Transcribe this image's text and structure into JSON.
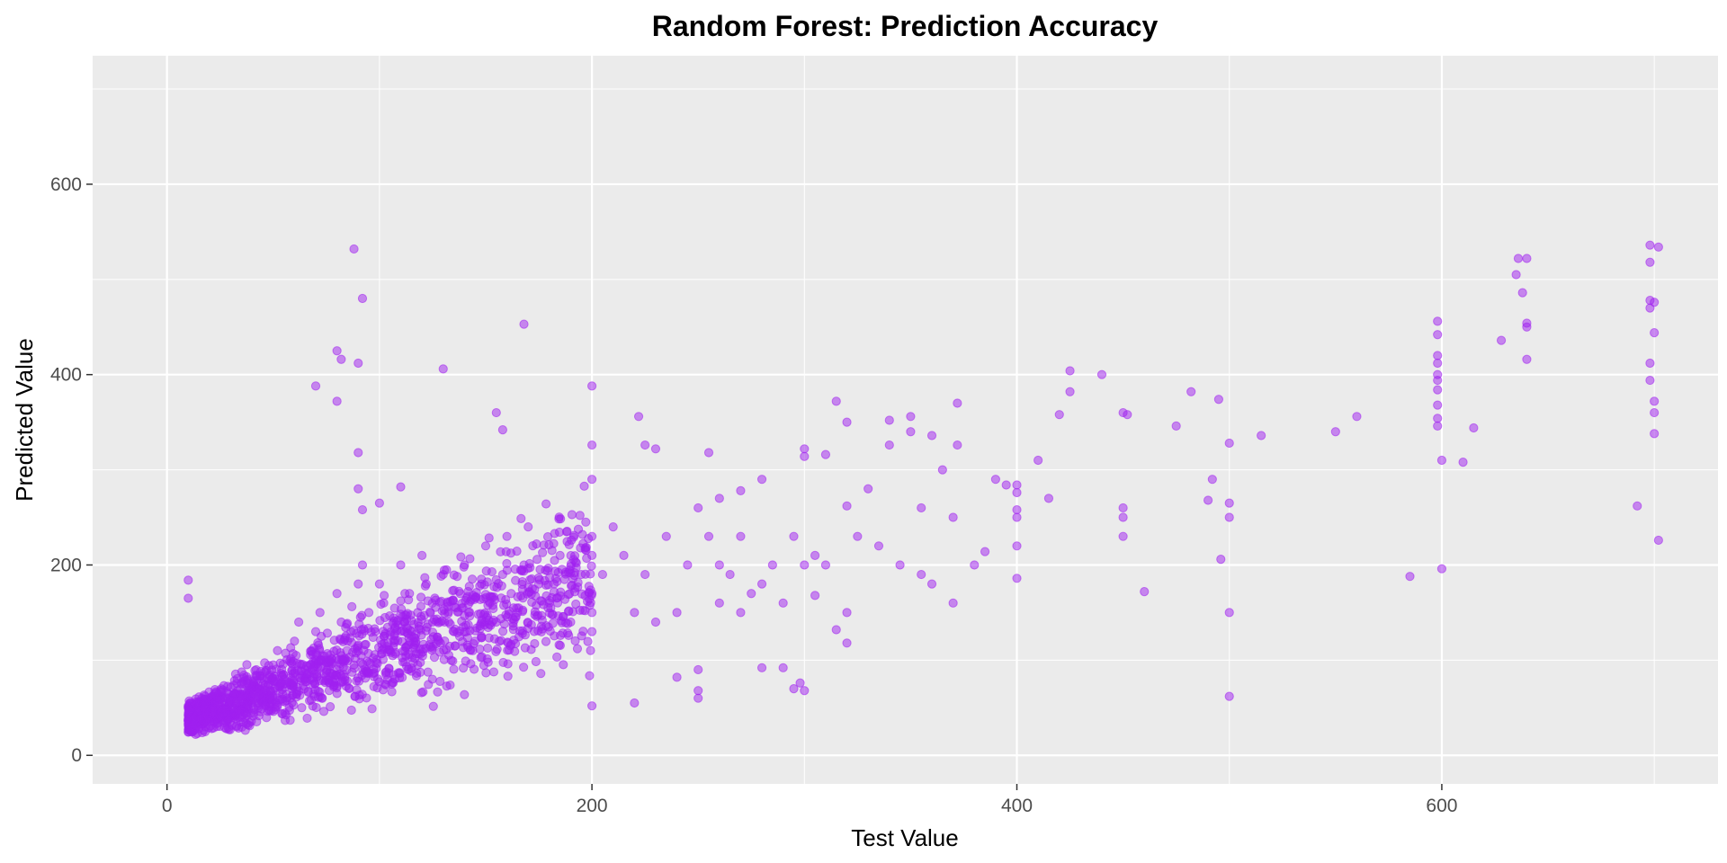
{
  "chart_data": {
    "type": "scatter",
    "title": "Random Forest: Prediction Accuracy",
    "xlabel": "Test Value",
    "ylabel": "Predicted Value",
    "xlim": [
      -35,
      730
    ],
    "ylim": [
      -30,
      735
    ],
    "x_ticks": [
      0,
      200,
      400,
      600
    ],
    "y_ticks": [
      0,
      200,
      400,
      600
    ],
    "x_tick_labels": [
      "0",
      "200",
      "400",
      "600"
    ],
    "y_tick_labels": [
      "0",
      "200",
      "400",
      "600"
    ],
    "grid": true,
    "legend": "none",
    "colors": {
      "point": "#A020F0",
      "panel": "#EBEBEB",
      "grid": "#FFFFFF"
    },
    "points": [
      [
        10,
        184
      ],
      [
        10,
        165
      ],
      [
        10,
        52
      ],
      [
        12,
        25
      ],
      [
        14,
        38
      ],
      [
        15,
        45
      ],
      [
        18,
        30
      ],
      [
        20,
        60
      ],
      [
        22,
        55
      ],
      [
        25,
        42
      ],
      [
        28,
        28
      ],
      [
        30,
        50
      ],
      [
        32,
        65
      ],
      [
        35,
        40
      ],
      [
        38,
        80
      ],
      [
        40,
        55
      ],
      [
        42,
        90
      ],
      [
        45,
        70
      ],
      [
        48,
        48
      ],
      [
        50,
        95
      ],
      [
        52,
        110
      ],
      [
        55,
        75
      ],
      [
        58,
        60
      ],
      [
        60,
        120
      ],
      [
        62,
        140
      ],
      [
        65,
        90
      ],
      [
        68,
        110
      ],
      [
        70,
        130
      ],
      [
        72,
        150
      ],
      [
        75,
        100
      ],
      [
        78,
        85
      ],
      [
        80,
        170
      ],
      [
        82,
        140
      ],
      [
        85,
        120
      ],
      [
        88,
        95
      ],
      [
        90,
        180
      ],
      [
        92,
        200
      ],
      [
        95,
        150
      ],
      [
        98,
        130
      ],
      [
        100,
        180
      ],
      [
        102,
        160
      ],
      [
        105,
        110
      ],
      [
        108,
        140
      ],
      [
        110,
        200
      ],
      [
        112,
        170
      ],
      [
        115,
        130
      ],
      [
        118,
        150
      ],
      [
        120,
        210
      ],
      [
        122,
        180
      ],
      [
        125,
        140
      ],
      [
        128,
        120
      ],
      [
        130,
        190
      ],
      [
        132,
        160
      ],
      [
        135,
        130
      ],
      [
        138,
        170
      ],
      [
        140,
        200
      ],
      [
        142,
        150
      ],
      [
        145,
        120
      ],
      [
        148,
        180
      ],
      [
        150,
        220
      ],
      [
        152,
        160
      ],
      [
        155,
        140
      ],
      [
        158,
        190
      ],
      [
        160,
        230
      ],
      [
        162,
        170
      ],
      [
        165,
        150
      ],
      [
        168,
        200
      ],
      [
        170,
        240
      ],
      [
        175,
        180
      ],
      [
        180,
        160
      ],
      [
        185,
        210
      ],
      [
        190,
        140
      ],
      [
        195,
        190
      ],
      [
        200,
        170
      ],
      [
        200,
        210
      ],
      [
        200,
        150
      ],
      [
        200,
        230
      ],
      [
        200,
        130
      ],
      [
        88,
        532
      ],
      [
        92,
        480
      ],
      [
        80,
        425
      ],
      [
        82,
        416
      ],
      [
        90,
        412
      ],
      [
        130,
        406
      ],
      [
        70,
        388
      ],
      [
        80,
        372
      ],
      [
        168,
        453
      ],
      [
        90,
        318
      ],
      [
        90,
        280
      ],
      [
        92,
        258
      ],
      [
        100,
        265
      ],
      [
        110,
        282
      ],
      [
        155,
        360
      ],
      [
        158,
        342
      ],
      [
        200,
        388
      ],
      [
        200,
        326
      ],
      [
        200,
        290
      ],
      [
        222,
        356
      ],
      [
        225,
        326
      ],
      [
        230,
        322
      ],
      [
        250,
        260
      ],
      [
        255,
        318
      ],
      [
        260,
        270
      ],
      [
        270,
        278
      ],
      [
        280,
        290
      ],
      [
        300,
        322
      ],
      [
        300,
        314
      ],
      [
        310,
        316
      ],
      [
        315,
        372
      ],
      [
        320,
        350
      ],
      [
        320,
        262
      ],
      [
        330,
        280
      ],
      [
        340,
        352
      ],
      [
        340,
        326
      ],
      [
        350,
        356
      ],
      [
        350,
        340
      ],
      [
        355,
        260
      ],
      [
        360,
        336
      ],
      [
        365,
        300
      ],
      [
        370,
        250
      ],
      [
        372,
        326
      ],
      [
        372,
        370
      ],
      [
        380,
        200
      ],
      [
        385,
        214
      ],
      [
        390,
        290
      ],
      [
        395,
        284
      ],
      [
        400,
        284
      ],
      [
        400,
        276
      ],
      [
        400,
        258
      ],
      [
        400,
        250
      ],
      [
        400,
        220
      ],
      [
        400,
        186
      ],
      [
        410,
        310
      ],
      [
        415,
        270
      ],
      [
        420,
        358
      ],
      [
        425,
        404
      ],
      [
        425,
        382
      ],
      [
        440,
        400
      ],
      [
        450,
        360
      ],
      [
        452,
        358
      ],
      [
        450,
        260
      ],
      [
        450,
        250
      ],
      [
        450,
        230
      ],
      [
        460,
        172
      ],
      [
        475,
        346
      ],
      [
        482,
        382
      ],
      [
        490,
        268
      ],
      [
        492,
        290
      ],
      [
        495,
        374
      ],
      [
        496,
        206
      ],
      [
        500,
        328
      ],
      [
        500,
        265
      ],
      [
        500,
        250
      ],
      [
        500,
        150
      ],
      [
        500,
        62
      ],
      [
        515,
        336
      ],
      [
        550,
        340
      ],
      [
        560,
        356
      ],
      [
        585,
        188
      ],
      [
        598,
        456
      ],
      [
        598,
        442
      ],
      [
        598,
        420
      ],
      [
        598,
        412
      ],
      [
        598,
        400
      ],
      [
        598,
        394
      ],
      [
        598,
        384
      ],
      [
        598,
        368
      ],
      [
        598,
        354
      ],
      [
        598,
        346
      ],
      [
        600,
        310
      ],
      [
        600,
        196
      ],
      [
        610,
        308
      ],
      [
        615,
        344
      ],
      [
        628,
        436
      ],
      [
        635,
        505
      ],
      [
        636,
        522
      ],
      [
        638,
        486
      ],
      [
        640,
        454
      ],
      [
        640,
        450
      ],
      [
        640,
        522
      ],
      [
        640,
        416
      ],
      [
        692,
        262
      ],
      [
        698,
        536
      ],
      [
        698,
        518
      ],
      [
        698,
        478
      ],
      [
        698,
        470
      ],
      [
        698,
        412
      ],
      [
        698,
        394
      ],
      [
        700,
        476
      ],
      [
        700,
        444
      ],
      [
        700,
        372
      ],
      [
        700,
        360
      ],
      [
        700,
        338
      ],
      [
        702,
        534
      ],
      [
        702,
        226
      ],
      [
        220,
        55
      ],
      [
        200,
        52
      ],
      [
        240,
        82
      ],
      [
        250,
        90
      ],
      [
        250,
        68
      ],
      [
        250,
        60
      ],
      [
        260,
        160
      ],
      [
        270,
        150
      ],
      [
        280,
        92
      ],
      [
        290,
        92
      ],
      [
        295,
        70
      ],
      [
        298,
        76
      ],
      [
        300,
        68
      ],
      [
        300,
        200
      ],
      [
        305,
        168
      ],
      [
        310,
        200
      ],
      [
        315,
        132
      ],
      [
        320,
        118
      ],
      [
        320,
        150
      ],
      [
        260,
        200
      ],
      [
        270,
        230
      ],
      [
        280,
        180
      ],
      [
        290,
        160
      ],
      [
        240,
        150
      ],
      [
        230,
        140
      ],
      [
        220,
        150
      ],
      [
        215,
        210
      ],
      [
        205,
        190
      ],
      [
        210,
        240
      ],
      [
        225,
        190
      ],
      [
        235,
        230
      ],
      [
        245,
        200
      ],
      [
        255,
        230
      ],
      [
        265,
        190
      ],
      [
        275,
        170
      ],
      [
        285,
        200
      ],
      [
        295,
        230
      ],
      [
        305,
        210
      ],
      [
        325,
        230
      ],
      [
        335,
        220
      ],
      [
        345,
        200
      ],
      [
        355,
        190
      ],
      [
        360,
        180
      ],
      [
        370,
        160
      ]
    ]
  }
}
